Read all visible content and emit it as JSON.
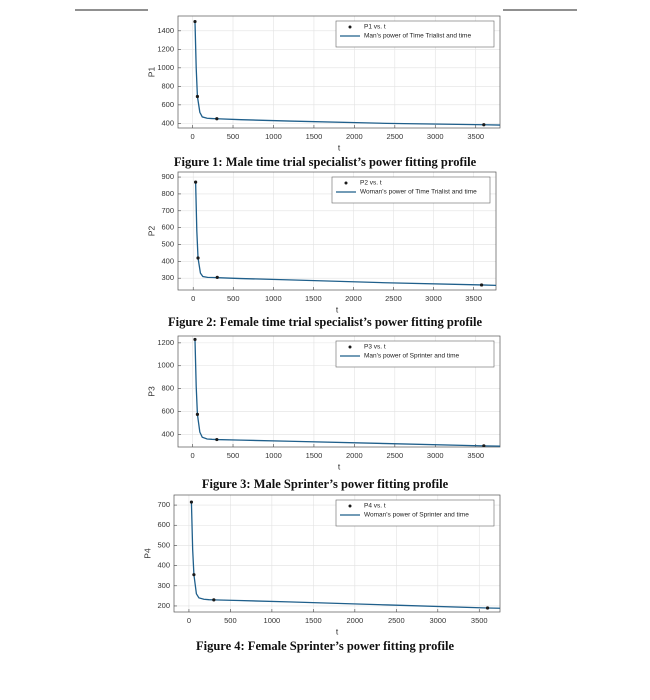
{
  "chart_data": [
    {
      "type": "line",
      "caption": "Figure 1: Male time trial specialist’s power fitting profile",
      "x_label": "t",
      "y_label": "P1",
      "grid": true,
      "legend": "upper right",
      "xlim": [
        -180,
        3800
      ],
      "ylim": [
        350,
        1560
      ],
      "xticks": [
        0,
        500,
        1000,
        1500,
        2000,
        2500,
        3000,
        3500
      ],
      "yticks": [
        400,
        600,
        800,
        1000,
        1200,
        1400
      ],
      "series": [
        {
          "name": "P1 vs. t",
          "kind": "markers",
          "color": "#1a1a1a",
          "x": [
            30,
            60,
            300,
            3600
          ],
          "values": [
            1500,
            690,
            450,
            385
          ]
        },
        {
          "name": "Man's power of Time Trialist and time",
          "kind": "line",
          "color": "#1f5f8b",
          "x": [
            30,
            45,
            60,
            90,
            120,
            180,
            240,
            300,
            600,
            1200,
            2400,
            3600,
            3800
          ],
          "values": [
            1500,
            1000,
            690,
            520,
            470,
            455,
            452,
            450,
            440,
            425,
            400,
            385,
            382
          ]
        }
      ]
    },
    {
      "type": "line",
      "caption": "Figure 2: Female time trial specialist’s power fitting profile",
      "x_label": "t",
      "y_label": "P2",
      "grid": true,
      "legend": "upper right",
      "xlim": [
        -190,
        3780
      ],
      "ylim": [
        230,
        930
      ],
      "xticks": [
        0,
        500,
        1000,
        1500,
        2000,
        2500,
        3000,
        3500
      ],
      "yticks": [
        300,
        400,
        500,
        600,
        700,
        800,
        900
      ],
      "series": [
        {
          "name": "P2 vs. t",
          "kind": "markers",
          "color": "#1a1a1a",
          "x": [
            30,
            60,
            300,
            3600
          ],
          "values": [
            870,
            420,
            305,
            260
          ]
        },
        {
          "name": "Woman's power of Time Trialist and time",
          "kind": "line",
          "color": "#1f5f8b",
          "x": [
            30,
            45,
            60,
            90,
            120,
            180,
            240,
            300,
            600,
            1200,
            2400,
            3600,
            3800
          ],
          "values": [
            870,
            580,
            420,
            330,
            310,
            305,
            304,
            303,
            298,
            290,
            273,
            260,
            257
          ]
        }
      ]
    },
    {
      "type": "line",
      "caption": "Figure 3: Male Sprinter’s power fitting profile",
      "x_label": "t",
      "y_label": "P3",
      "grid": true,
      "legend": "upper right",
      "xlim": [
        -180,
        3800
      ],
      "ylim": [
        290,
        1260
      ],
      "xticks": [
        0,
        500,
        1000,
        1500,
        2000,
        2500,
        3000,
        3500
      ],
      "yticks": [
        400,
        600,
        800,
        1000,
        1200
      ],
      "series": [
        {
          "name": "P3 vs. t",
          "kind": "markers",
          "color": "#1a1a1a",
          "x": [
            30,
            60,
            300,
            3600
          ],
          "values": [
            1230,
            575,
            355,
            300
          ]
        },
        {
          "name": "Man's power of Sprinter and time",
          "kind": "line",
          "color": "#1f5f8b",
          "x": [
            30,
            45,
            60,
            90,
            120,
            180,
            240,
            300,
            600,
            1200,
            2400,
            3600,
            3800
          ],
          "values": [
            1230,
            820,
            575,
            420,
            375,
            360,
            357,
            355,
            350,
            340,
            320,
            300,
            297
          ]
        }
      ]
    },
    {
      "type": "line",
      "caption": "Figure 4: Female Sprinter’s power fitting profile",
      "x_label": "t",
      "y_label": "P4",
      "grid": true,
      "legend": "upper right",
      "xlim": [
        -180,
        3750
      ],
      "ylim": [
        170,
        750
      ],
      "xticks": [
        0,
        500,
        1000,
        1500,
        2000,
        2500,
        3000,
        3500
      ],
      "yticks": [
        200,
        300,
        400,
        500,
        600,
        700
      ],
      "series": [
        {
          "name": "P4 vs. t",
          "kind": "markers",
          "color": "#1a1a1a",
          "x": [
            30,
            60,
            300,
            3600
          ],
          "values": [
            715,
            355,
            230,
            190
          ]
        },
        {
          "name": "Woman's power of Sprinter and time",
          "kind": "line",
          "color": "#1f5f8b",
          "x": [
            30,
            45,
            60,
            90,
            120,
            180,
            240,
            300,
            600,
            1200,
            2400,
            3600,
            3800
          ],
          "values": [
            715,
            480,
            355,
            260,
            240,
            233,
            231,
            230,
            227,
            220,
            205,
            190,
            188
          ]
        }
      ]
    }
  ]
}
